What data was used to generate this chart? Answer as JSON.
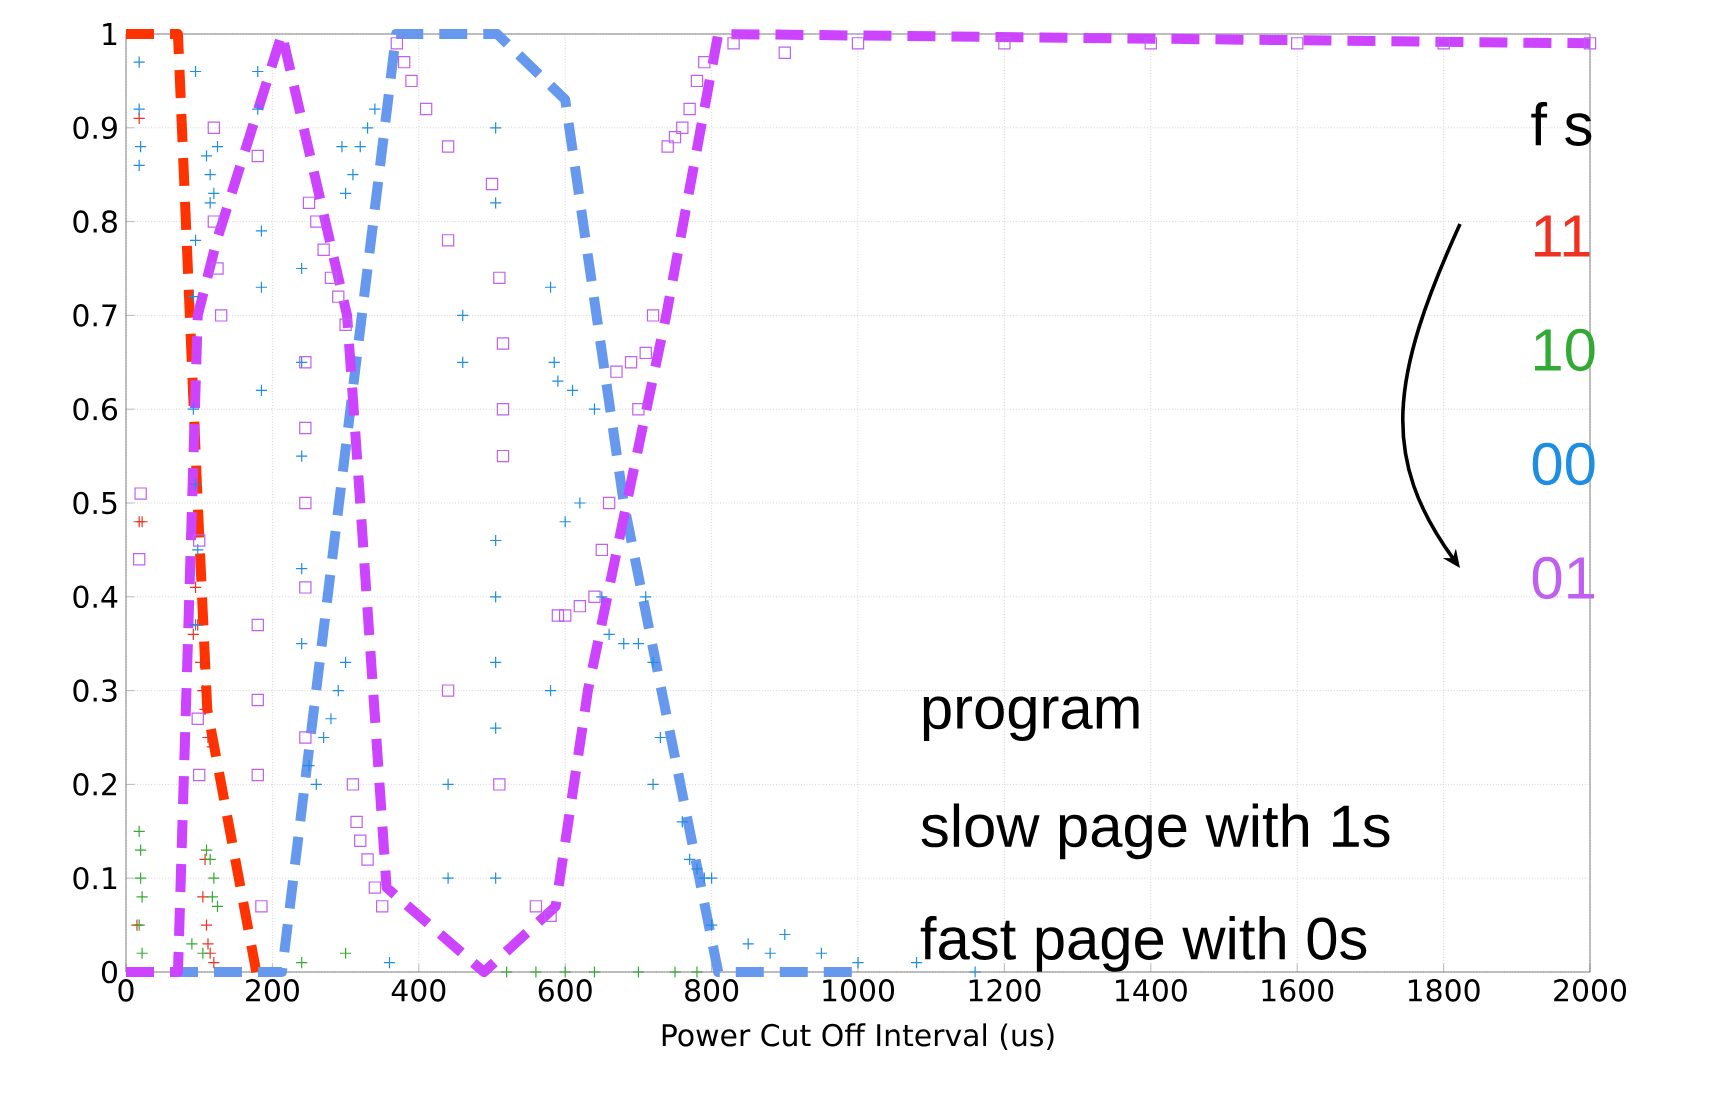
{
  "chart_data": {
    "type": "scatter",
    "xlabel": "Power Cut Off Interval (us)",
    "xlim": [
      0,
      2000
    ],
    "ylim": [
      0,
      1
    ],
    "xticks": [
      0,
      200,
      400,
      600,
      800,
      1000,
      1200,
      1400,
      1600,
      1800,
      2000
    ],
    "yticks": [
      0,
      0.1,
      0.2,
      0.3,
      0.4,
      0.5,
      0.6,
      0.7,
      0.8,
      0.9,
      1
    ],
    "grid": true,
    "legend": "right",
    "legend_title": "f s",
    "annotations": [
      "program",
      "slow page with 1s",
      "fast page with 0s"
    ],
    "series": [
      {
        "name": "11",
        "color": "#f03020",
        "marker": "cross",
        "x": [
          18,
          18,
          22,
          15,
          95,
          98,
          92,
          102,
          105,
          108,
          112,
          118,
          108,
          105,
          110,
          112,
          115,
          120
        ],
        "values": [
          0.91,
          0.48,
          0.48,
          0.05,
          0.41,
          0.37,
          0.36,
          0.33,
          0.3,
          0.28,
          0.25,
          0.24,
          0.12,
          0.08,
          0.05,
          0.03,
          0.02,
          0.01
        ]
      },
      {
        "name": "10",
        "color": "#33aa33",
        "marker": "cross",
        "x": [
          18,
          20,
          20,
          22,
          18,
          22,
          110,
          115,
          120,
          118,
          125,
          105,
          90,
          240,
          300,
          360,
          520,
          560,
          600,
          640,
          700,
          750,
          780
        ],
        "values": [
          0.15,
          0.13,
          0.1,
          0.08,
          0.05,
          0.02,
          0.13,
          0.12,
          0.1,
          0.08,
          0.07,
          0.02,
          0.03,
          0.01,
          0.02,
          null,
          0,
          0,
          0,
          0,
          0,
          0,
          0
        ]
      },
      {
        "name": "00",
        "color": "#1e8ee0",
        "marker": "cross",
        "x": [
          18,
          18,
          20,
          18,
          95,
          95,
          92,
          92,
          95,
          98,
          95,
          110,
          115,
          120,
          115,
          125,
          180,
          180,
          185,
          185,
          185,
          240,
          240,
          240,
          240,
          240,
          250,
          260,
          270,
          280,
          290,
          300,
          295,
          300,
          310,
          320,
          330,
          340,
          360,
          460,
          460,
          440,
          440,
          505,
          505,
          505,
          505,
          505,
          505,
          505,
          580,
          585,
          590,
          610,
          640,
          620,
          600,
          580,
          650,
          660,
          680,
          700,
          710,
          720,
          730,
          720,
          760,
          770,
          780,
          790,
          800,
          800,
          850,
          880,
          900,
          950,
          1000,
          1080,
          1160
        ],
        "values": [
          0.97,
          0.92,
          0.88,
          0.86,
          0.96,
          0.78,
          0.72,
          0.6,
          0.52,
          0.45,
          0.37,
          0.87,
          0.85,
          0.83,
          0.82,
          0.88,
          0.96,
          0.92,
          0.79,
          0.73,
          0.62,
          0.75,
          0.65,
          0.55,
          0.43,
          0.35,
          0.22,
          0.2,
          0.25,
          0.27,
          0.3,
          0.33,
          0.88,
          0.83,
          0.85,
          0.88,
          0.9,
          0.92,
          0.01,
          0.7,
          0.65,
          0.2,
          0.1,
          0.46,
          0.4,
          0.33,
          0.26,
          0.1,
          0.82,
          0.9,
          0.73,
          0.65,
          0.63,
          0.62,
          0.6,
          0.5,
          0.48,
          0.3,
          0.4,
          0.36,
          0.35,
          0.35,
          0.4,
          0.33,
          0.25,
          0.2,
          0.16,
          0.12,
          0.11,
          0.1,
          0.1,
          0.05,
          0.03,
          0.02,
          0.04,
          0.02,
          0.01,
          0.01,
          0
        ]
      },
      {
        "name": "01",
        "color": "#c060f0",
        "marker": "square",
        "x": [
          20,
          18,
          100,
          98,
          100,
          120,
          120,
          125,
          130,
          180,
          180,
          180,
          180,
          185,
          250,
          260,
          270,
          280,
          290,
          300,
          245,
          245,
          245,
          245,
          245,
          310,
          315,
          320,
          330,
          340,
          350,
          370,
          380,
          390,
          410,
          440,
          440,
          440,
          500,
          510,
          515,
          515,
          515,
          510,
          560,
          580,
          590,
          600,
          620,
          640,
          650,
          660,
          670,
          690,
          710,
          720,
          700,
          740,
          750,
          760,
          770,
          780,
          790,
          830,
          900,
          1000,
          1200,
          1400,
          1600,
          1800,
          2000
        ],
        "values": [
          0.51,
          0.44,
          0.46,
          0.27,
          0.21,
          0.9,
          0.8,
          0.75,
          0.7,
          0.87,
          0.37,
          0.29,
          0.21,
          0.07,
          0.82,
          0.8,
          0.77,
          0.74,
          0.72,
          0.69,
          0.65,
          0.58,
          0.5,
          0.41,
          0.25,
          0.2,
          0.16,
          0.14,
          0.12,
          0.09,
          0.07,
          0.99,
          0.97,
          0.95,
          0.92,
          0.88,
          0.78,
          0.3,
          0.84,
          0.74,
          0.67,
          0.6,
          0.55,
          0.2,
          0.07,
          0.06,
          0.38,
          0.38,
          0.39,
          0.4,
          0.45,
          0.5,
          0.64,
          0.65,
          0.66,
          0.7,
          0.6,
          0.88,
          0.89,
          0.9,
          0.92,
          0.95,
          0.97,
          0.99,
          0.98,
          0.99,
          0.99,
          0.99,
          0.99,
          0.99,
          0.99
        ]
      },
      {
        "type": "line",
        "line_style": "dashed",
        "marker": "none",
        "color": "#ff3300",
        "x": [
          0,
          71,
          98,
          111,
          178
        ],
        "values": [
          1,
          1,
          0.5,
          0.28,
          0
        ]
      },
      {
        "type": "line",
        "line_style": "dashed",
        "marker": "none",
        "color": "#6699ee",
        "x": [
          0,
          213,
          369,
          507,
          600,
          680,
          809,
          1000
        ],
        "values": [
          0,
          0,
          1,
          1,
          0.93,
          0.5,
          0,
          0
        ]
      },
      {
        "type": "line",
        "line_style": "dashed",
        "marker": "none",
        "color": "#cc44ff",
        "x": [
          0,
          71,
          98,
          124,
          213,
          302,
          320,
          356,
          489,
          587,
          631,
          684,
          738,
          809,
          2000
        ],
        "values": [
          0,
          0,
          0.7,
          0.78,
          1,
          0.7,
          0.5,
          0.09,
          0,
          0.07,
          0.3,
          0.5,
          0.7,
          1,
          0.99
        ]
      }
    ]
  }
}
